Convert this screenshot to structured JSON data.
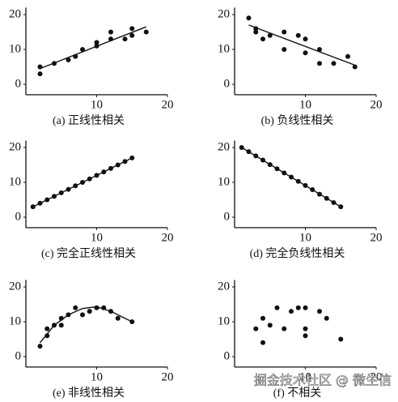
{
  "chart_data": [
    {
      "type": "scatter",
      "caption": "(a) 正线性相关",
      "color": "#111111",
      "x": [
        2,
        2,
        4,
        6,
        7,
        8,
        10,
        10,
        12,
        12,
        14,
        15,
        15,
        17
      ],
      "y": [
        3,
        5,
        6,
        7,
        8,
        10,
        11,
        12,
        13,
        15,
        13,
        16,
        14,
        15
      ],
      "fit": {
        "x": [
          2,
          17
        ],
        "y": [
          4.5,
          16.5
        ]
      },
      "xlim": [
        0,
        20
      ],
      "ylim": [
        -3,
        22
      ],
      "xticks": [
        10,
        20
      ],
      "yticks": [
        0,
        10,
        20
      ]
    },
    {
      "type": "scatter",
      "caption": "(b) 负线性相关",
      "color": "#111111",
      "x": [
        2,
        3,
        3,
        4,
        5,
        7,
        7,
        9,
        10,
        10,
        12,
        12,
        14,
        16,
        17
      ],
      "y": [
        19,
        16,
        15,
        13,
        14,
        15,
        10,
        14,
        13,
        9,
        10,
        6,
        6,
        8,
        5
      ],
      "fit": {
        "x": [
          2,
          17
        ],
        "y": [
          17,
          5.5
        ]
      },
      "xlim": [
        0,
        20
      ],
      "ylim": [
        -3,
        22
      ],
      "xticks": [
        10,
        20
      ],
      "yticks": [
        0,
        10,
        20
      ]
    },
    {
      "type": "scatter",
      "caption": "(c) 完全正线性相关",
      "color": "#111111",
      "x": [
        1,
        2,
        3,
        4,
        5,
        6,
        7,
        8,
        9,
        10,
        11,
        12,
        13,
        14,
        15
      ],
      "y": [
        3,
        4,
        5,
        6,
        7,
        8,
        9,
        10,
        11,
        12,
        13,
        14,
        15,
        16,
        17
      ],
      "fit": {
        "x": [
          1,
          15
        ],
        "y": [
          3,
          17
        ]
      },
      "xlim": [
        0,
        20
      ],
      "ylim": [
        -3,
        22
      ],
      "xticks": [
        10,
        20
      ],
      "yticks": [
        0,
        10,
        20
      ]
    },
    {
      "type": "scatter",
      "caption": "(d) 完全负线性相关",
      "color": "#111111",
      "x": [
        1,
        2,
        3,
        4,
        5,
        6,
        7,
        8,
        9,
        10,
        11,
        12,
        13,
        14,
        15
      ],
      "y": [
        20,
        18.8,
        17.6,
        16.4,
        15.1,
        13.9,
        12.7,
        11.5,
        10.3,
        9.1,
        7.9,
        6.6,
        5.4,
        4.2,
        3
      ],
      "fit": {
        "x": [
          1,
          15
        ],
        "y": [
          20,
          3
        ]
      },
      "xlim": [
        0,
        20
      ],
      "ylim": [
        -3,
        22
      ],
      "xticks": [
        10,
        20
      ],
      "yticks": [
        0,
        10,
        20
      ]
    },
    {
      "type": "scatter",
      "caption": "(e) 非线性相关",
      "color": "#111111",
      "x": [
        2,
        3,
        3,
        4,
        5,
        5,
        6,
        7,
        8,
        9,
        10,
        11,
        12,
        13,
        15
      ],
      "y": [
        3,
        6,
        8,
        9,
        11,
        9,
        12,
        14,
        12,
        13,
        14,
        14,
        13,
        11,
        10
      ],
      "fit": {
        "x": [
          2,
          4,
          6,
          8,
          10,
          12,
          14,
          15
        ],
        "y": [
          4,
          9,
          12,
          13.8,
          14.3,
          13,
          11,
          10
        ]
      },
      "xlim": [
        0,
        20
      ],
      "ylim": [
        -3,
        22
      ],
      "xticks": [
        10,
        20
      ],
      "yticks": [
        0,
        10,
        20
      ]
    },
    {
      "type": "scatter",
      "caption": "(f) 不相关",
      "color": "#111111",
      "x": [
        3,
        4,
        4,
        5,
        6,
        7,
        8,
        9,
        10,
        10,
        10,
        12,
        13,
        15
      ],
      "y": [
        8,
        11,
        4,
        9,
        14,
        8,
        13,
        14,
        8,
        6,
        14,
        13,
        11,
        5
      ],
      "xlim": [
        0,
        20
      ],
      "ylim": [
        -3,
        22
      ],
      "xticks": [
        10,
        20
      ],
      "yticks": [
        0,
        10,
        20
      ]
    }
  ],
  "watermark": "掘金技术社区 @ 微生信"
}
